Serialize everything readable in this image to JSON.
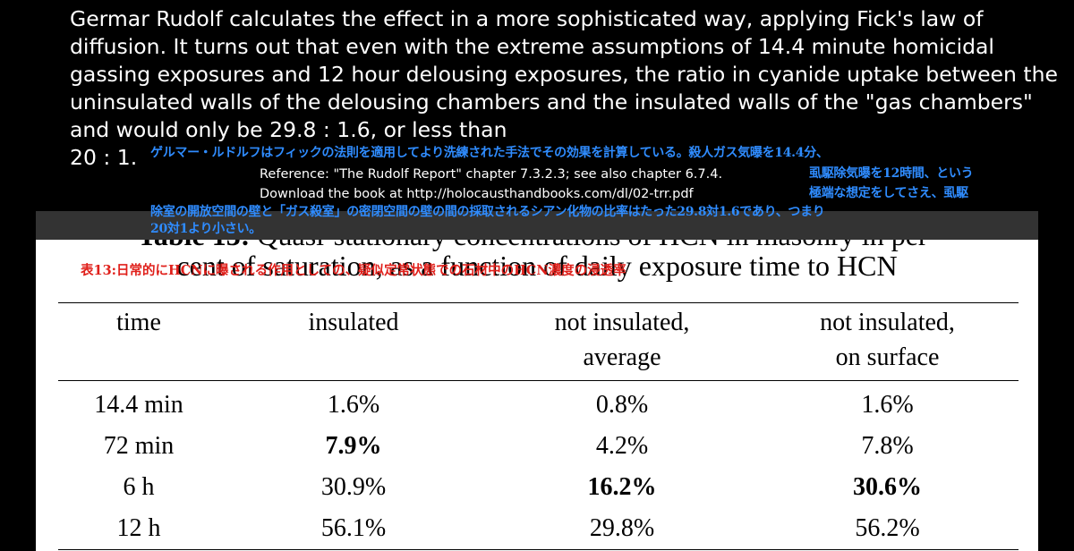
{
  "narration": {
    "text": "Germar Rudolf calculates the effect in a more sophisticated way, applying Fick's law of diffusion.  It turns out that even with the extreme assumptions of 14.4 minute homicidal gassing exposures and 12 hour delousing exposures, the ratio in cyanide uptake between the uninsulated walls of the delousing chambers and the insulated walls of the \"gas chambers\" and  would only be 29.8 : 1.6, or less than",
    "tail": "20 : 1."
  },
  "subtitles_jp": {
    "line1": "ゲルマー・ルドルフはフィックの法則を適用してより洗練された手法でその効果を計算している。殺人ガス気曝を14.4分、",
    "line2": "虱駆除気曝を12時間、という",
    "line3": "極端な想定をしてさえ、虱駆",
    "line4": "除室の開放空間の壁と「ガス殺室」の密閉空間の壁の間の採取されるシアン化物の比率はたった29.8対1.6であり、つまり",
    "line5": "20対1より小さい。"
  },
  "reference": {
    "line1": "Reference: \"The Rudolf Report\" chapter 7.3.2.3; see also chapter 6.7.4.",
    "line2": "Download the book at http://holocausthandbooks.com/dl/02-trr.pdf"
  },
  "table": {
    "title_bold": "Table 13:",
    "title_rest": " Quasi-stationary concentrations of HCN in masonry in per-",
    "title_line2": "cent of saturation, as a function of daily exposure time to HCN",
    "title_jp": "表13:日常的にHCNに曝される作用としての、疑似定常状態での石材中のHCN濃度の浸透率",
    "headers": [
      {
        "line1": "time",
        "line2": ""
      },
      {
        "line1": "insulated",
        "line2": ""
      },
      {
        "line1": "not insulated,",
        "line2": "average"
      },
      {
        "line1": "not insulated,",
        "line2": "on surface"
      }
    ],
    "rows": [
      {
        "time": "14.4 min",
        "insulated": "1.6%",
        "avg": "0.8%",
        "surface": "1.6%"
      },
      {
        "time": "72 min",
        "insulated": "7.9%",
        "avg": "4.2%",
        "surface": "7.8%"
      },
      {
        "time": "6 h",
        "insulated": "30.9%",
        "avg": "16.2%",
        "surface": "30.6%"
      },
      {
        "time": "12 h",
        "insulated": "56.1%",
        "avg": "29.8%",
        "surface": "56.2%"
      }
    ]
  }
}
